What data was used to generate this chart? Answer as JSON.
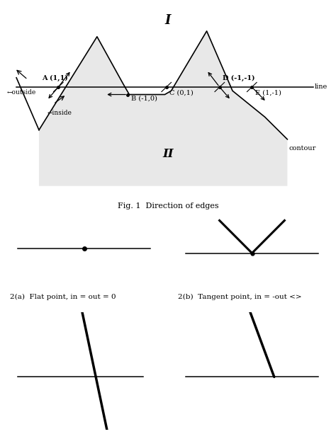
{
  "bg_color": "#ffffff",
  "fig_width": 4.74,
  "fig_height": 6.13,
  "title_I": "I",
  "title_II": "II",
  "fig_caption": "Fig. 1  Direction of edges",
  "label_line": "line",
  "label_contour": "contour",
  "label_outside": "←outside",
  "label_inside": "←inside",
  "caption_2a": "2(a)  Flat point, in = out = 0",
  "caption_2b": "2(b)  Tangent point, in = -out <>"
}
